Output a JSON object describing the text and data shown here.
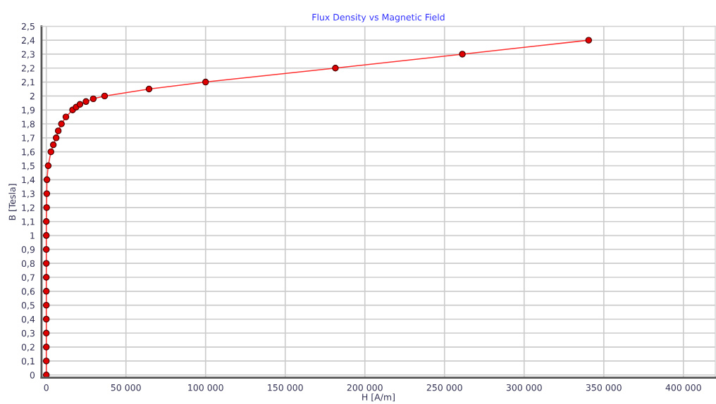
{
  "chart_data": {
    "type": "line",
    "title": "Flux Density vs Magnetic Field",
    "xlabel": "H [A/m]",
    "ylabel": "B [Tesla]",
    "series": [
      {
        "color": "#ff3030",
        "x": [
          0,
          0,
          0,
          0,
          0,
          0,
          0,
          0,
          0,
          0,
          0,
          0,
          200,
          300,
          400,
          1200,
          2900,
          4400,
          6200,
          7500,
          9500,
          12300,
          16500,
          18700,
          21100,
          24900,
          29500,
          36600,
          64500,
          100000,
          181500,
          261200,
          340500
        ],
        "values": [
          0,
          0.1,
          0.2,
          0.3,
          0.4,
          0.5,
          0.6,
          0.7,
          0.8,
          0.9,
          1.0,
          1.1,
          1.2,
          1.3,
          1.4,
          1.5,
          1.6,
          1.65,
          1.7,
          1.75,
          1.8,
          1.85,
          1.9,
          1.92,
          1.94,
          1.96,
          1.98,
          2.0,
          2.05,
          2.1,
          2.2,
          2.3,
          2.4
        ]
      }
    ],
    "xlim": [
      -3000,
      420000
    ],
    "xticks": [
      0,
      {
        "value": 50000,
        "label": "50 000"
      },
      {
        "value": 100000,
        "label": "100 000"
      },
      {
        "value": 150000,
        "label": "150 000"
      },
      {
        "value": 200000,
        "label": "200 000"
      },
      {
        "value": 250000,
        "label": "250 000"
      },
      {
        "value": 300000,
        "label": "300 000"
      },
      {
        "value": 350000,
        "label": "350 000"
      },
      {
        "value": 400000,
        "label": "400 000"
      }
    ],
    "ylim": [
      -0.02,
      2.5
    ],
    "yticks": [
      0,
      {
        "value": 0.1,
        "label": "0,1"
      },
      {
        "value": 0.2,
        "label": "0,2"
      },
      {
        "value": 0.3,
        "label": "0,3"
      },
      {
        "value": 0.4,
        "label": "0,4"
      },
      {
        "value": 0.5,
        "label": "0,5"
      },
      {
        "value": 0.6,
        "label": "0,6"
      },
      {
        "value": 0.7,
        "label": "0,7"
      },
      {
        "value": 0.8,
        "label": "0,8"
      },
      {
        "value": 0.9,
        "label": "0,9"
      },
      1,
      {
        "value": 1.1,
        "label": "1,1"
      },
      {
        "value": 1.2,
        "label": "1,2"
      },
      {
        "value": 1.3,
        "label": "1,3"
      },
      {
        "value": 1.4,
        "label": "1,4"
      },
      {
        "value": 1.5,
        "label": "1,5"
      },
      {
        "value": 1.6,
        "label": "1,6"
      },
      {
        "value": 1.7,
        "label": "1,7"
      },
      {
        "value": 1.8,
        "label": "1,8"
      },
      {
        "value": 1.9,
        "label": "1,9"
      },
      2,
      {
        "value": 2.1,
        "label": "2,1"
      },
      {
        "value": 2.2,
        "label": "2,2"
      },
      {
        "value": 2.3,
        "label": "2,3"
      },
      {
        "value": 2.4,
        "label": "2,4"
      },
      {
        "value": 2.5,
        "label": "2,5"
      }
    ],
    "grid": true,
    "marker": "circle",
    "line_style": "solid"
  }
}
